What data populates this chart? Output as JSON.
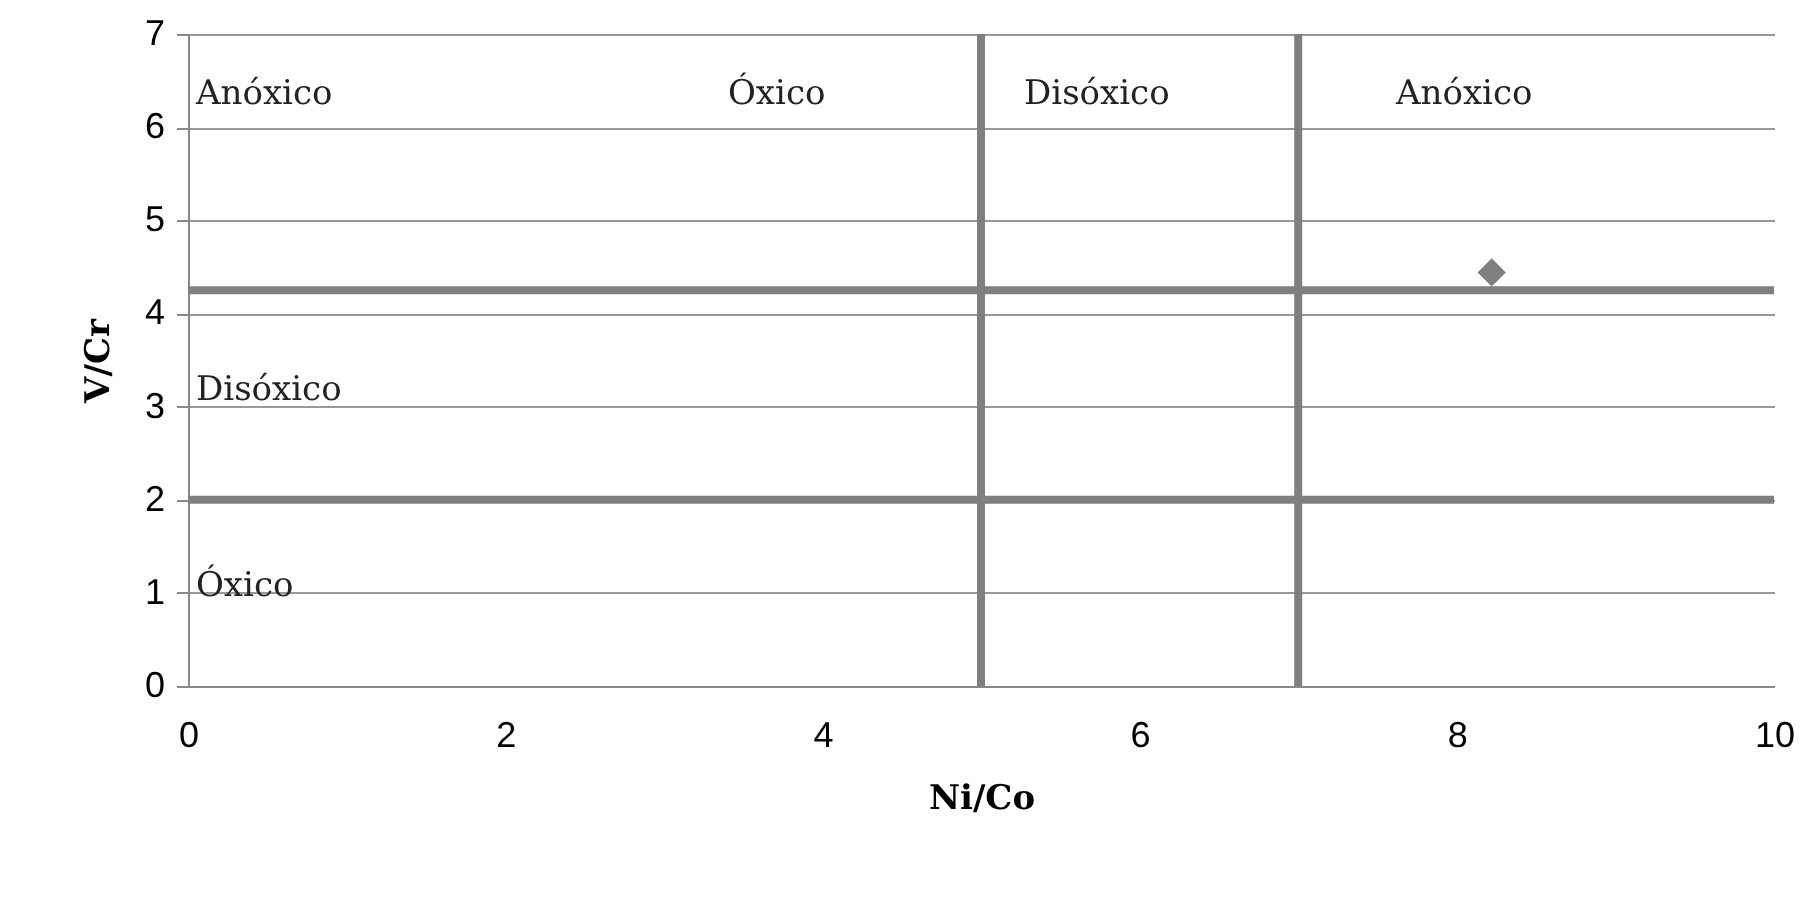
{
  "chart_data": {
    "type": "scatter",
    "xlabel": "Ni/Co",
    "ylabel": "V/Cr",
    "x": [
      8.22
    ],
    "series": [
      {
        "color": "#7f7f7f",
        "values": [
          4.44
        ]
      }
    ],
    "marker": "diamond",
    "grid": "y",
    "legend": false,
    "xlim": [
      0,
      10
    ],
    "xticks": [
      0,
      2,
      4,
      6,
      8,
      10
    ],
    "ylim": [
      0,
      7
    ],
    "yticks": [
      0,
      1,
      2,
      3,
      4,
      5,
      6,
      7
    ],
    "ref_lines": [
      {
        "axis": "y",
        "value": 4.25,
        "color": "#7f7f7f"
      },
      {
        "axis": "y",
        "value": 2,
        "color": "#7f7f7f"
      },
      {
        "axis": "x",
        "value": 5,
        "color": "#7f7f7f"
      },
      {
        "axis": "x",
        "value": 7,
        "color": "#7f7f7f"
      }
    ],
    "annotations": [
      "Anóxico",
      "Óxico",
      "Disóxico",
      "Anóxico",
      "Disóxico",
      "Óxico"
    ]
  }
}
